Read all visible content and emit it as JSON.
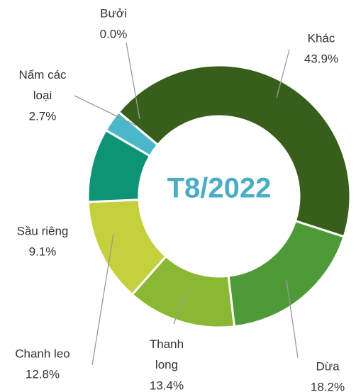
{
  "chart_data": {
    "type": "donut",
    "center_text": "T8/2022",
    "categories": [
      "Khác",
      "Dừa",
      "Thanh long",
      "Chanh leo",
      "Sầu riêng",
      "Nấm các loại",
      "Bưởi"
    ],
    "values": [
      43.9,
      18.2,
      13.4,
      12.8,
      9.1,
      2.7,
      0.0
    ],
    "value_labels": [
      "43.9%",
      "18.2%",
      "13.4%",
      "12.8%",
      "9.1%",
      "2.7%",
      "0.0%"
    ],
    "colors": [
      "#375f1b",
      "#4f9a38",
      "#8ab833",
      "#c5d03d",
      "#0e9475",
      "#4ab8c8",
      "#9bbb59"
    ]
  }
}
